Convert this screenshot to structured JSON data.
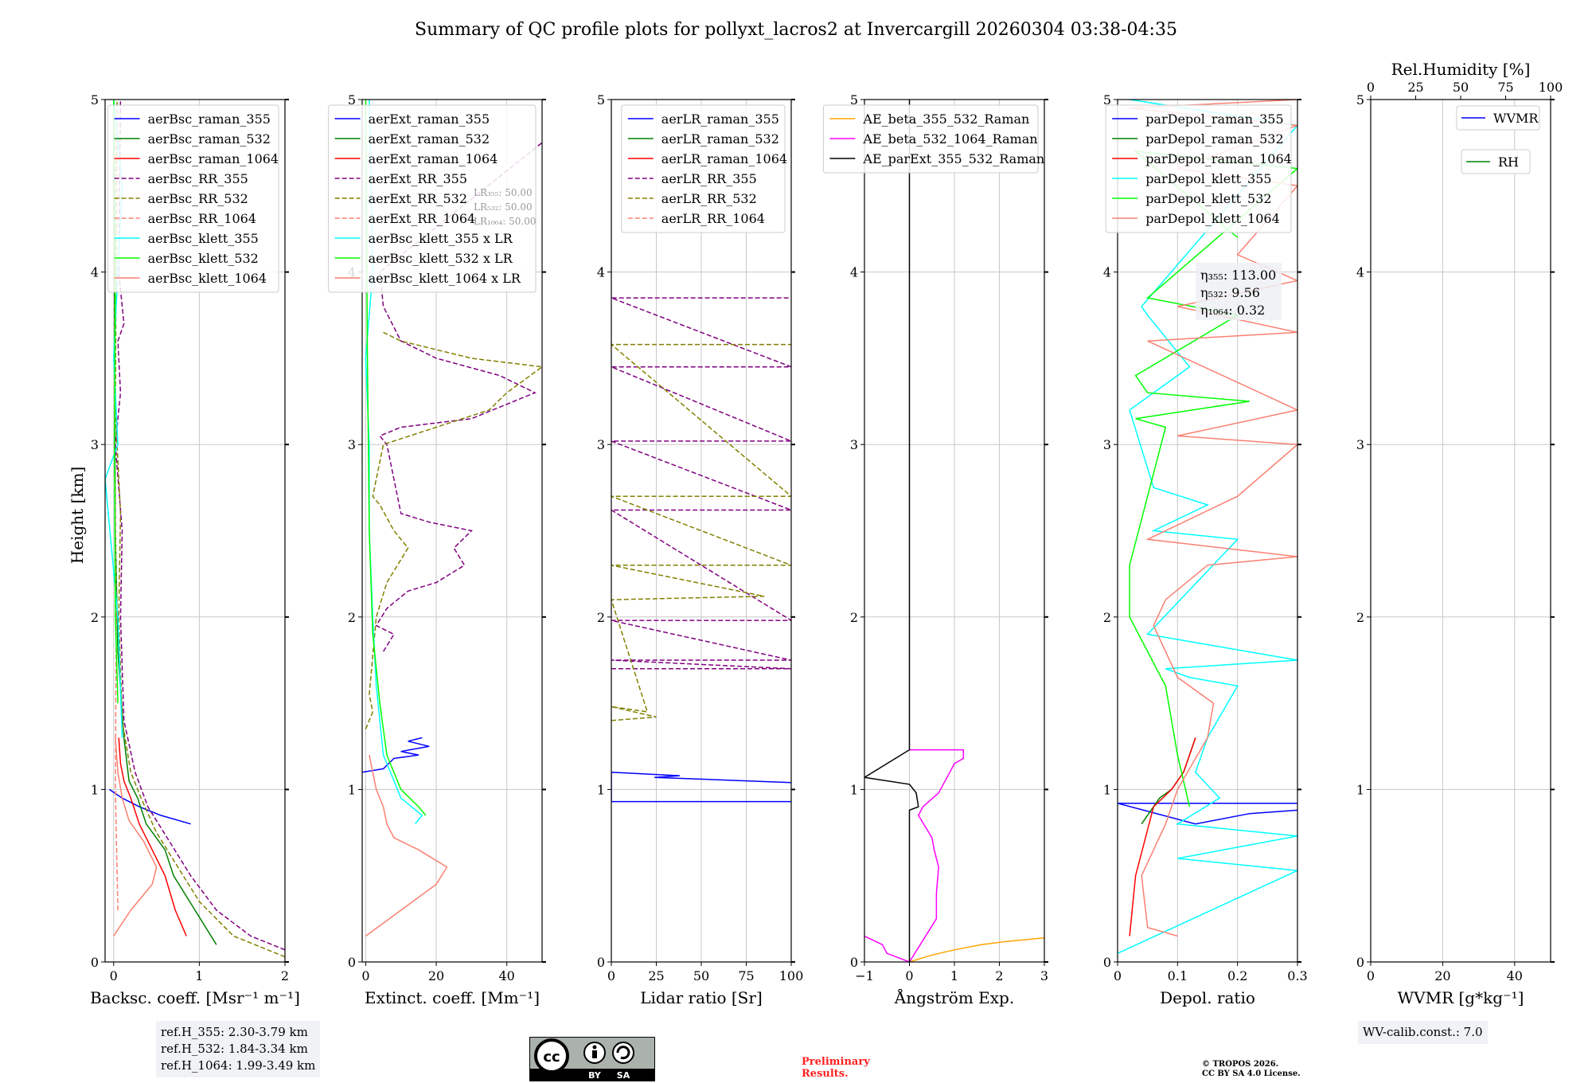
{
  "title": "Summary of QC profile plots for pollyxt_lacros2 at Invercargill 20260304 03:38-04:35",
  "y_label": "Height [km]",
  "y_ticks": [
    "0",
    "1",
    "2",
    "3",
    "4",
    "5"
  ],
  "footer": {
    "ref_heights": [
      "ref.H_355: 2.30-3.79 km",
      "ref.H_532: 1.84-3.34 km",
      "ref.H_1064: 1.99-3.49 km"
    ],
    "preliminary": [
      "Preliminary",
      "Results."
    ],
    "copyright": [
      "© TROPOS 2026.",
      "CC BY SA 4.0 License."
    ],
    "wv_calib": "WV-calib.const.: 7.0",
    "license_badge": [
      "BY",
      "SA"
    ]
  },
  "colors": {
    "blue": "#0000ff",
    "green": "#008000",
    "red": "#ff0000",
    "purple": "#800080",
    "olive": "#808000",
    "salmon": "#fa8072",
    "cyan": "#00ffff",
    "lime": "#00ff00",
    "orange": "#ffa500",
    "magenta": "#ff00ff",
    "black": "#000000",
    "grid": "#c8c8c8"
  },
  "chart_data": [
    {
      "id": "bsc",
      "type": "line",
      "xlabel": "Backsc. coeff. [Msr⁻¹ m⁻¹]",
      "ylabel": "Height [km]",
      "xlim": [
        -0.1,
        2
      ],
      "ylim": [
        0,
        5
      ],
      "xticks": [
        0,
        1,
        2
      ],
      "legend": "upper-right",
      "series": [
        {
          "name": "aerBsc_raman_355",
          "color": "blue",
          "dash": false,
          "x": [
            0.9,
            0.55,
            0.3,
            0.1,
            -0.05
          ],
          "y": [
            0.8,
            0.85,
            0.9,
            0.95,
            1.0
          ]
        },
        {
          "name": "aerBsc_raman_532",
          "color": "green",
          "dash": false,
          "x": [
            1.2,
            0.95,
            0.7,
            0.6,
            0.38,
            0.28,
            0.18,
            0.12,
            0.05,
            0.02,
            0.0
          ],
          "y": [
            0.1,
            0.3,
            0.5,
            0.65,
            0.8,
            0.95,
            1.05,
            1.3,
            1.8,
            2.5,
            4.9
          ]
        },
        {
          "name": "aerBsc_raman_1064",
          "color": "red",
          "dash": false,
          "x": [
            0.85,
            0.72,
            0.6,
            0.45,
            0.3,
            0.2,
            0.12,
            0.08,
            0.06
          ],
          "y": [
            0.15,
            0.3,
            0.5,
            0.65,
            0.8,
            0.95,
            1.05,
            1.15,
            1.3
          ]
        },
        {
          "name": "aerBsc_RR_355",
          "color": "purple",
          "dash": true,
          "x": [
            2.0,
            1.6,
            1.2,
            0.9,
            0.65,
            0.4,
            0.25,
            0.12,
            0.08,
            0.1,
            0.02,
            0.08,
            0.05,
            0.12,
            0.06,
            0.08
          ],
          "y": [
            0.07,
            0.15,
            0.3,
            0.5,
            0.7,
            0.9,
            1.1,
            1.4,
            2.0,
            2.5,
            3.0,
            3.3,
            3.6,
            3.7,
            4.0,
            5.0
          ]
        },
        {
          "name": "aerBsc_RR_532",
          "color": "olive",
          "dash": true,
          "x": [
            2.0,
            1.4,
            1.0,
            0.75,
            0.5,
            0.32,
            0.2,
            0.1,
            0.06,
            0.08,
            0.02,
            0.04
          ],
          "y": [
            0.03,
            0.15,
            0.35,
            0.55,
            0.75,
            0.95,
            1.1,
            1.4,
            2.0,
            2.6,
            3.2,
            5.0
          ]
        },
        {
          "name": "aerBsc_RR_1064",
          "color": "salmon",
          "dash": true,
          "x": [
            0.05,
            0.02,
            0.03,
            0.01,
            0.02
          ],
          "y": [
            0.3,
            1.0,
            2.0,
            3.0,
            4.8
          ]
        },
        {
          "name": "aerBsc_klett_355",
          "color": "cyan",
          "dash": false,
          "x": [
            0.1,
            0.05,
            -0.1,
            0.05,
            0.0,
            0.05,
            0.1,
            0.0
          ],
          "y": [
            1.3,
            2.0,
            2.8,
            3.0,
            3.5,
            4.0,
            4.5,
            5.0
          ]
        },
        {
          "name": "aerBsc_klett_532",
          "color": "lime",
          "dash": false,
          "x": [
            0.05,
            0.02,
            0.01,
            0.02,
            0.0
          ],
          "y": [
            1.5,
            2.0,
            3.0,
            4.0,
            5.0
          ]
        },
        {
          "name": "aerBsc_klett_1064",
          "color": "salmon",
          "dash": false,
          "x": [
            0.0,
            0.2,
            0.45,
            0.5,
            0.35,
            0.18,
            0.1,
            0.05,
            0.02
          ],
          "y": [
            0.15,
            0.3,
            0.45,
            0.55,
            0.7,
            0.82,
            0.95,
            1.1,
            1.3
          ]
        }
      ]
    },
    {
      "id": "ext",
      "type": "line",
      "xlabel": "Extinct. coeff. [Mm⁻¹]",
      "ylabel": "",
      "xlim": [
        -1,
        50
      ],
      "ylim": [
        0,
        5
      ],
      "xticks": [
        0,
        20,
        40
      ],
      "legend": "upper-right",
      "inset_lr": [
        "LR₃₅₅: 50.00",
        "LR₅₃₂: 50.00",
        "LR₁₀₆₄: 50.00"
      ],
      "series": [
        {
          "name": "aerExt_raman_355",
          "color": "blue",
          "dash": false,
          "x": [
            -1,
            5,
            8,
            15,
            10,
            18,
            12,
            16
          ],
          "y": [
            1.1,
            1.12,
            1.18,
            1.2,
            1.22,
            1.25,
            1.28,
            1.3
          ]
        },
        {
          "name": "aerExt_raman_532",
          "color": "green",
          "dash": false,
          "x": [],
          "y": []
        },
        {
          "name": "aerExt_raman_1064",
          "color": "red",
          "dash": false,
          "x": [],
          "y": []
        },
        {
          "name": "aerExt_RR_355",
          "color": "purple",
          "dash": true,
          "x": [
            5,
            8,
            3,
            6,
            12,
            20,
            28,
            25,
            30,
            18,
            10,
            6,
            4,
            10,
            30,
            42,
            48,
            38,
            20,
            10,
            5,
            4,
            50
          ],
          "y": [
            1.8,
            1.9,
            1.95,
            2.05,
            2.15,
            2.2,
            2.3,
            2.4,
            2.5,
            2.55,
            2.6,
            3.0,
            3.05,
            3.1,
            3.15,
            3.25,
            3.3,
            3.4,
            3.5,
            3.6,
            3.8,
            4.0,
            4.75
          ]
        },
        {
          "name": "aerExt_RR_532",
          "color": "olive",
          "dash": true,
          "x": [
            0,
            2,
            1,
            3,
            6,
            12,
            8,
            4,
            2,
            5,
            20,
            35,
            40,
            50,
            30,
            20,
            10,
            5
          ],
          "y": [
            1.35,
            1.45,
            1.55,
            2.0,
            2.2,
            2.4,
            2.5,
            2.65,
            2.7,
            3.0,
            3.1,
            3.2,
            3.3,
            3.45,
            3.5,
            3.55,
            3.6,
            3.65
          ]
        },
        {
          "name": "aerExt_RR_1064",
          "color": "salmon",
          "dash": true,
          "x": [],
          "y": []
        },
        {
          "name": "aerBsc_klett_355 x LR",
          "color": "cyan",
          "dash": false,
          "x": [
            14,
            16,
            10,
            5,
            3,
            2,
            1,
            1,
            0,
            2,
            1
          ],
          "y": [
            0.8,
            0.85,
            0.95,
            1.2,
            1.6,
            2.0,
            2.5,
            3.0,
            3.5,
            4.0,
            5.0
          ]
        },
        {
          "name": "aerBsc_klett_532 x LR",
          "color": "lime",
          "dash": false,
          "x": [
            17,
            15,
            10,
            6,
            4,
            2,
            1,
            0.5,
            0
          ],
          "y": [
            0.85,
            0.9,
            1.0,
            1.2,
            1.5,
            1.9,
            2.5,
            3.5,
            5.0
          ]
        },
        {
          "name": "aerBsc_klett_1064 x LR",
          "color": "salmon",
          "dash": false,
          "x": [
            0,
            10,
            20,
            23,
            15,
            8,
            6,
            5,
            3,
            1
          ],
          "y": [
            0.15,
            0.3,
            0.45,
            0.55,
            0.65,
            0.72,
            0.8,
            0.9,
            1.0,
            1.2
          ]
        }
      ]
    },
    {
      "id": "lr",
      "type": "line",
      "xlabel": "Lidar ratio [Sr]",
      "ylabel": "",
      "xlim": [
        0,
        100
      ],
      "ylim": [
        0,
        5
      ],
      "xticks": [
        0,
        25,
        50,
        75,
        100
      ],
      "legend": "upper-right",
      "series": [
        {
          "name": "aerLR_raman_355",
          "color": "blue",
          "dash": false,
          "x": [
            100,
            0,
            0,
            38,
            24,
            100
          ],
          "y": [
            0.93,
            0.93,
            1.1,
            1.08,
            1.07,
            1.04
          ]
        },
        {
          "name": "aerLR_raman_532",
          "color": "green",
          "dash": false,
          "x": [],
          "y": []
        },
        {
          "name": "aerLR_raman_1064",
          "color": "red",
          "dash": false,
          "x": [],
          "y": []
        },
        {
          "name": "aerLR_RR_355",
          "color": "purple",
          "dash": true,
          "x": [
            0,
            100,
            0,
            100,
            0,
            100,
            0,
            100,
            0,
            100,
            0,
            100,
            0,
            100
          ],
          "y": [
            1.7,
            1.7,
            1.75,
            1.75,
            1.98,
            1.98,
            2.62,
            2.62,
            3.02,
            3.02,
            3.45,
            3.45,
            3.85,
            3.85
          ]
        },
        {
          "name": "aerLR_RR_532",
          "color": "olive",
          "dash": true,
          "x": [
            0,
            25,
            0,
            20,
            0,
            85,
            0,
            100,
            0,
            100,
            0,
            100
          ],
          "y": [
            1.4,
            1.42,
            1.48,
            1.45,
            2.1,
            2.12,
            2.3,
            2.3,
            2.7,
            2.7,
            3.58,
            3.58
          ]
        },
        {
          "name": "aerLR_RR_1064",
          "color": "salmon",
          "dash": true,
          "x": [],
          "y": []
        }
      ]
    },
    {
      "id": "ae",
      "type": "line",
      "xlabel": "Ångström Exp.",
      "ylabel": "",
      "xlim": [
        -1,
        3
      ],
      "ylim": [
        0,
        5
      ],
      "xticks": [
        -1,
        0,
        1,
        2,
        3
      ],
      "legend": "upper-right",
      "series": [
        {
          "name": "AE_beta_355_532_Raman",
          "color": "orange",
          "dash": false,
          "x": [
            0,
            0.5,
            1.0,
            1.6,
            2.2,
            3.0
          ],
          "y": [
            0.0,
            0.04,
            0.07,
            0.1,
            0.12,
            0.14
          ]
        },
        {
          "name": "AE_beta_532_1064_Raman",
          "color": "magenta",
          "dash": false,
          "x": [
            -1,
            -0.6,
            -0.5,
            -0.2,
            0,
            0.6,
            0.6,
            0.65,
            0.55,
            0.5,
            0.2,
            0.3,
            0.65,
            0.9,
            1.0,
            1.2,
            1.2,
            0
          ],
          "y": [
            0.15,
            0.1,
            0.05,
            0.02,
            0.0,
            0.25,
            0.4,
            0.55,
            0.65,
            0.72,
            0.85,
            0.9,
            0.98,
            1.1,
            1.15,
            1.18,
            1.23,
            1.23
          ]
        },
        {
          "name": "AE_parExt_355_532_Raman",
          "color": "black",
          "dash": false,
          "x": [
            0,
            0,
            0.2,
            0.15,
            0,
            -1,
            0,
            0
          ],
          "y": [
            0.0,
            0.88,
            0.9,
            0.98,
            1.03,
            1.07,
            1.23,
            5.0
          ]
        }
      ]
    },
    {
      "id": "depol",
      "type": "line",
      "xlabel": "Depol. ratio",
      "ylabel": "",
      "xlim": [
        0,
        0.3
      ],
      "ylim": [
        0,
        5
      ],
      "xticks": [
        0.0,
        0.1,
        0.2,
        0.3
      ],
      "legend": "upper-right",
      "eta": [
        "η₃₅₅: 113.00",
        "η₅₃₂: 9.56",
        "η₁₀₆₄: 0.32"
      ],
      "series": [
        {
          "name": "parDepol_raman_355",
          "color": "blue",
          "dash": false,
          "x": [
            0.3,
            0.0,
            0.0,
            0.13,
            0.22,
            0.3
          ],
          "y": [
            0.92,
            0.92,
            0.92,
            0.8,
            0.86,
            0.88
          ]
        },
        {
          "name": "parDepol_raman_532",
          "color": "green",
          "dash": false,
          "x": [
            0.04,
            0.07,
            0.09,
            0.11,
            0.12,
            0.13
          ],
          "y": [
            0.8,
            0.95,
            1.0,
            1.1,
            1.2,
            1.3
          ]
        },
        {
          "name": "parDepol_raman_1064",
          "color": "red",
          "dash": false,
          "x": [
            0.02,
            0.03,
            0.06,
            0.09,
            0.11,
            0.13
          ],
          "y": [
            0.15,
            0.5,
            0.9,
            1.0,
            1.1,
            1.3
          ]
        },
        {
          "name": "parDepol_klett_355",
          "color": "cyan",
          "dash": false,
          "x": [
            0,
            0.3,
            0.1,
            0.3,
            0.1,
            0.17,
            0.13,
            0.15,
            0.2,
            0.12,
            0.08,
            0.3,
            0.05,
            0.2,
            0.06,
            0.15,
            0.06,
            0.02,
            0.12,
            0.05,
            0.04,
            0.3,
            0.02
          ],
          "y": [
            0.05,
            0.53,
            0.6,
            0.73,
            0.8,
            0.95,
            1.1,
            1.3,
            1.6,
            1.65,
            1.7,
            1.75,
            1.9,
            2.45,
            2.5,
            2.65,
            2.75,
            3.2,
            3.45,
            3.75,
            3.8,
            4.85,
            5.0
          ]
        },
        {
          "name": "parDepol_klett_532",
          "color": "lime",
          "dash": false,
          "x": [
            0.12,
            0.1,
            0.08,
            0.05,
            0.02,
            0.02,
            0.08,
            0.03,
            0.22,
            0.05,
            0.03,
            0.2,
            0.05,
            0.3,
            0.03,
            0.2
          ],
          "y": [
            0.9,
            1.2,
            1.6,
            1.8,
            2.0,
            2.3,
            3.1,
            3.15,
            3.25,
            3.3,
            3.4,
            3.75,
            3.85,
            4.6,
            4.7,
            4.2
          ]
        },
        {
          "name": "parDepol_klett_1064",
          "color": "salmon",
          "dash": false,
          "x": [
            0.1,
            0.05,
            0.04,
            0.08,
            0.1,
            0.15,
            0.16,
            0.1,
            0.06,
            0.08,
            0.15,
            0.3,
            0.05,
            0.2,
            0.3,
            0.1,
            0.3,
            0.05,
            0.3,
            0.1,
            0.3,
            0.2,
            0.3,
            0.1,
            0.3,
            0.02,
            0.3
          ],
          "y": [
            0.15,
            0.2,
            0.5,
            0.8,
            1.0,
            1.3,
            1.5,
            1.65,
            1.95,
            2.1,
            2.3,
            2.35,
            2.45,
            2.7,
            3.0,
            3.05,
            3.2,
            3.6,
            3.65,
            3.8,
            3.95,
            4.1,
            4.5,
            4.6,
            4.85,
            4.95,
            5.0
          ]
        }
      ]
    },
    {
      "id": "wv",
      "type": "line",
      "xlabel": "WVMR [g*kg⁻¹]",
      "ylabel": "",
      "xlim": [
        0,
        50
      ],
      "ylim": [
        0,
        5
      ],
      "xticks": [
        0,
        20,
        40
      ],
      "top_axis": {
        "label": "Rel.Humidity [%]",
        "xlim": [
          0,
          100
        ],
        "xticks": [
          0,
          25,
          50,
          75,
          100
        ]
      },
      "legend": "upper-right",
      "series": [
        {
          "name": "WVMR",
          "color": "blue",
          "dash": false,
          "x": [],
          "y": []
        },
        {
          "name": "RH",
          "color": "green",
          "dash": false,
          "x": [],
          "y": []
        }
      ]
    }
  ]
}
